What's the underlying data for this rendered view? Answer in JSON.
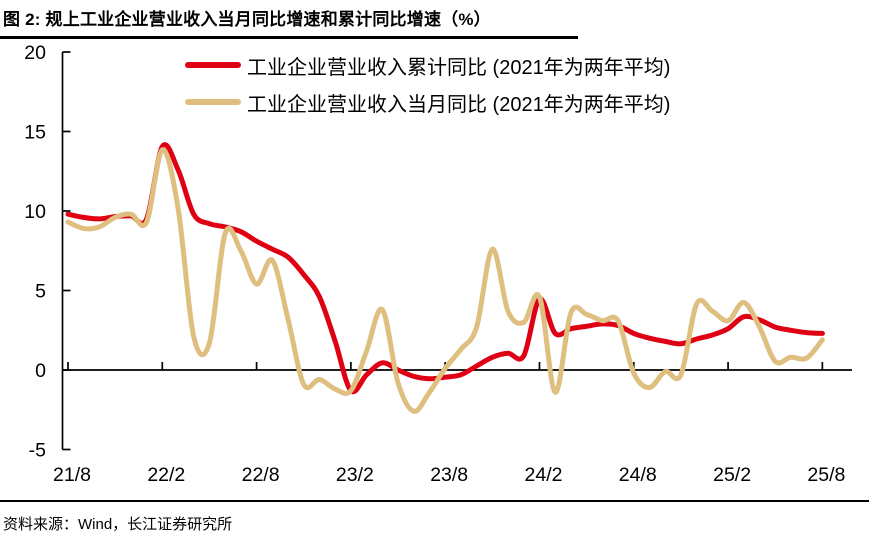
{
  "title": "图 2: 规上工业企业营业收入当月同比增速和累计同比增速（%）",
  "source": "资料来源：Wind，长江证券研究所",
  "colors": {
    "cumulative_line": "#e00013",
    "monthly_line": "#dfbf80",
    "axis": "#000000"
  },
  "legend": [
    {
      "label": "工业企业营业收入累计同比 (2021年为两年平均)",
      "series": "cumulative"
    },
    {
      "label": "工业企业营业收入当月同比 (2021年为两年平均)",
      "series": "monthly"
    }
  ],
  "chart_data": {
    "type": "line",
    "title": "规上工业企业营业收入当月同比增速和累计同比增速（%）",
    "xlabel": "",
    "ylabel": "",
    "ylim": [
      -5,
      20
    ],
    "y_ticks": [
      20,
      15,
      10,
      5,
      0,
      -5
    ],
    "grid": "zero-line-only",
    "legend_position": "top-center",
    "x": [
      "21/8",
      "21/9",
      "21/10",
      "21/11",
      "21/12",
      "22/1",
      "22/2",
      "22/3",
      "22/4",
      "22/5",
      "22/6",
      "22/7",
      "22/8",
      "22/9",
      "22/10",
      "22/11",
      "22/12",
      "23/1",
      "23/2",
      "23/3",
      "23/4",
      "23/5",
      "23/6",
      "23/7",
      "23/8",
      "23/9",
      "23/10",
      "23/11",
      "23/12",
      "24/1",
      "24/2",
      "24/3",
      "24/4",
      "24/5",
      "24/6",
      "24/7",
      "24/8",
      "24/9",
      "24/10",
      "24/11",
      "24/12",
      "25/1",
      "25/2",
      "25/3",
      "25/4",
      "25/5",
      "25/6",
      "25/7",
      "25/8"
    ],
    "x_tick_labels": [
      "21/8",
      "22/2",
      "22/8",
      "23/2",
      "23/8",
      "24/2",
      "24/8",
      "25/2",
      "25/8"
    ],
    "x_tick_every": 6,
    "series": [
      {
        "name": "工业企业营业收入累计同比 (2021年为两年平均)",
        "color": "#e00013",
        "values": [
          9.8,
          9.6,
          9.5,
          9.65,
          9.7,
          9.5,
          14.05,
          12.6,
          9.8,
          9.2,
          9.0,
          8.7,
          8.1,
          7.6,
          7.1,
          6.0,
          4.6,
          1.8,
          -1.3,
          -0.3,
          0.45,
          0.0,
          -0.4,
          -0.55,
          -0.45,
          -0.3,
          0.25,
          0.8,
          1.05,
          0.9,
          4.45,
          2.3,
          2.6,
          2.75,
          2.9,
          2.8,
          2.3,
          2.0,
          1.8,
          1.65,
          1.95,
          2.2,
          2.6,
          3.35,
          3.15,
          2.7,
          2.5,
          2.35,
          2.3
        ]
      },
      {
        "name": "工业企业营业收入当月同比 (2021年为两年平均)",
        "color": "#dfbf80",
        "values": [
          9.3,
          8.9,
          9.0,
          9.6,
          9.8,
          9.3,
          13.85,
          10.2,
          2.1,
          1.7,
          8.6,
          7.5,
          5.4,
          6.9,
          3.2,
          -0.9,
          -0.6,
          -1.2,
          -1.3,
          1.2,
          3.8,
          -0.8,
          -2.6,
          -1.4,
          0.1,
          1.3,
          2.7,
          7.6,
          3.7,
          3.0,
          4.6,
          -1.4,
          3.6,
          3.5,
          3.1,
          3.1,
          -0.2,
          -1.1,
          -0.1,
          -0.3,
          4.15,
          3.7,
          3.1,
          4.25,
          2.7,
          0.55,
          0.8,
          0.75,
          1.9
        ]
      }
    ]
  }
}
